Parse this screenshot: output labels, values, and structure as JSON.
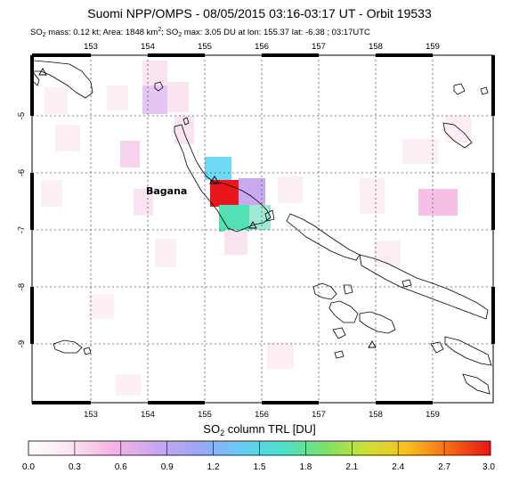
{
  "title": {
    "text": "Suomi NPP/OMPS - 08/05/2015 03:16-03:17 UT - Orbit 19533"
  },
  "subtitle": {
    "part1": "SO",
    "part1_sub": "2",
    "part2": " mass: 0.12 kt; Area: 1848 km",
    "part2_sup": "2",
    "part3": "; SO",
    "part3_sub": "2",
    "part4": " max: 3.05 DU at lon: 155.37 lat: -6.38 ; 03:17UTC"
  },
  "map": {
    "lon_ticks_top": [
      "153",
      "154",
      "155",
      "156",
      "157",
      "158",
      "159"
    ],
    "lon_ticks_bottom": [
      "153",
      "154",
      "155",
      "156",
      "157",
      "158",
      "159"
    ],
    "lat_ticks": [
      "-5",
      "-6",
      "-7",
      "-8",
      "-9"
    ],
    "volcano_label": "Bagana",
    "lon_range": [
      152.0,
      160.0
    ],
    "lat_range": [
      -10.0,
      -4.0
    ],
    "colors": {
      "frame": "#000000",
      "grid": "#555555",
      "coast": "#000000"
    }
  },
  "colorbar": {
    "label_main": "SO",
    "label_sub": "2",
    "label_rest": " column TRL [DU]",
    "ticks": [
      "0.0",
      "0.3",
      "0.6",
      "0.9",
      "1.2",
      "1.5",
      "1.8",
      "2.1",
      "2.4",
      "2.7",
      "3.0"
    ],
    "range": [
      0.0,
      3.0
    ],
    "stops": [
      "#ffffff",
      "#fde3f0",
      "#f5b4e6",
      "#c9a6f0",
      "#9aa6f5",
      "#66ccf5",
      "#4be0c8",
      "#7be06a",
      "#cde038",
      "#f7c021",
      "#f56a14",
      "#e8141a"
    ]
  }
}
